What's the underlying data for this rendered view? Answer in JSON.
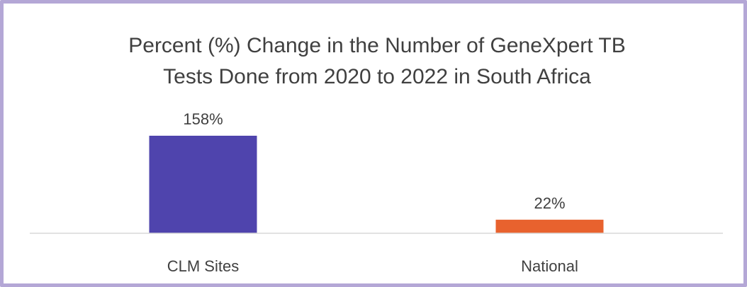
{
  "chart_data": {
    "type": "bar",
    "title_lines": [
      "Percent (%) Change in the Number of GeneXpert TB",
      "Tests Done from 2020 to 2022 in South Africa"
    ],
    "categories": [
      "CLM Sites",
      "National"
    ],
    "values": [
      158,
      22
    ],
    "data_labels": [
      "158%",
      "22%"
    ],
    "bar_colors": [
      "#4f44ad",
      "#e8622e"
    ],
    "ylim": [
      0,
      158
    ],
    "grid": false,
    "legend": "none"
  },
  "colors": {
    "frame_border": "#b4a7d6",
    "axis_line": "#d9d9d9",
    "text": "#404040"
  }
}
